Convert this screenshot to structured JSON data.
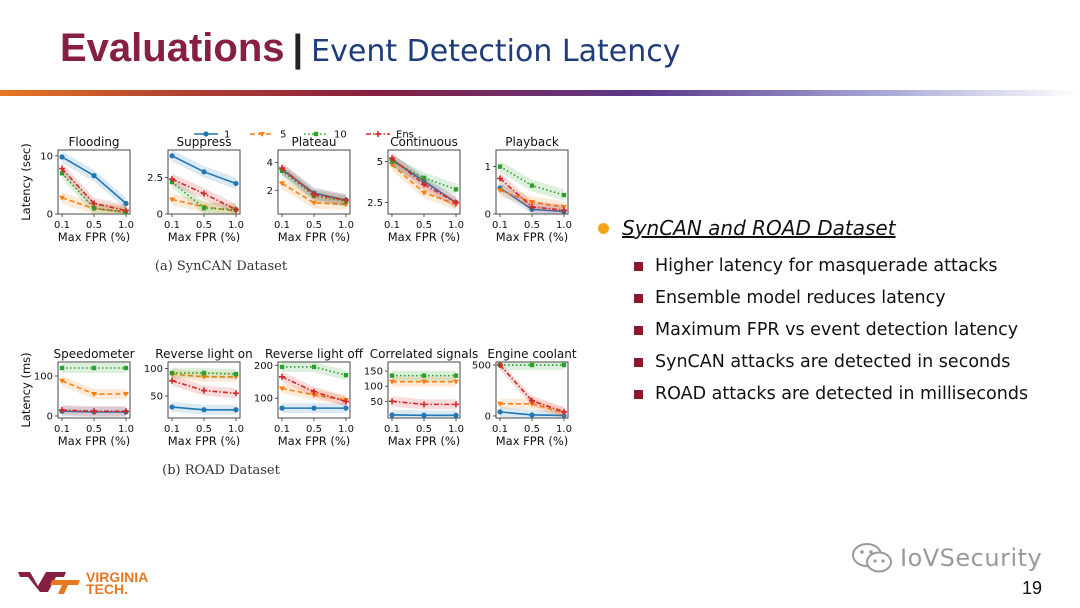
{
  "slide": {
    "title_main": "Evaluations",
    "title_sep": "|",
    "title_sub": "Event Detection Latency",
    "page_number": "19",
    "watermark": "IoVSecurity",
    "logo_line1": "VIRGINIA",
    "logo_line2": "TECH."
  },
  "bullets": {
    "heading": "SynCAN and ROAD Dataset",
    "items": [
      "Higher latency for masquerade attacks",
      "Ensemble model reduces latency",
      "Maximum FPR vs event detection latency",
      "SynCAN attacks are detected in seconds",
      "ROAD attacks  are detected in milliseconds"
    ]
  },
  "colors": {
    "title_main": "#861f41",
    "title_sub": "#1f3c7a",
    "bullet_dot": "#f5a41a",
    "bullet_square": "#8b1a2c",
    "series_1": "#1f77b4",
    "series_5": "#ff7f0e",
    "series_10": "#2ca02c",
    "series_ens": "#d62728"
  },
  "chart_data": [
    {
      "type": "line",
      "caption": "(a) SynCAN Dataset",
      "ylabel": "Latency (sec)",
      "xlabel": "Max FPR (%)",
      "x": [
        "0.1",
        "0.5",
        "1.0"
      ],
      "legend": [
        "1",
        "5",
        "10",
        "Ens"
      ],
      "panels": [
        {
          "title": "Flooding",
          "ylim": [
            0,
            11
          ],
          "yticks": [
            0,
            10
          ],
          "series": [
            {
              "name": "1",
              "values": [
                9.8,
                6.6,
                1.8
              ]
            },
            {
              "name": "5",
              "values": [
                2.8,
                0.9,
                0.4
              ]
            },
            {
              "name": "10",
              "values": [
                7.0,
                1.0,
                0.3
              ]
            },
            {
              "name": "Ens",
              "values": [
                7.8,
                1.8,
                0.6
              ]
            }
          ]
        },
        {
          "title": "Suppress",
          "ylim": [
            0,
            4.4
          ],
          "yticks": [
            0.0,
            2.5
          ],
          "series": [
            {
              "name": "1",
              "values": [
                4.0,
                2.9,
                2.1
              ]
            },
            {
              "name": "5",
              "values": [
                1.0,
                0.5,
                0.2
              ]
            },
            {
              "name": "10",
              "values": [
                2.2,
                0.4,
                0.3
              ]
            },
            {
              "name": "Ens",
              "values": [
                2.4,
                1.4,
                0.3
              ]
            }
          ]
        },
        {
          "title": "Plateau",
          "ylim": [
            0.3,
            4.9
          ],
          "yticks": [
            2,
            4
          ],
          "series": [
            {
              "name": "1",
              "values": [
                3.5,
                1.8,
                1.3
              ]
            },
            {
              "name": "5",
              "values": [
                2.5,
                1.1,
                1.0
              ]
            },
            {
              "name": "10",
              "values": [
                3.4,
                1.6,
                1.2
              ]
            },
            {
              "name": "Ens",
              "values": [
                3.6,
                1.7,
                1.3
              ]
            }
          ]
        },
        {
          "title": "Continuous",
          "ylim": [
            1.8,
            5.7
          ],
          "yticks": [
            2.5,
            5.0
          ],
          "series": [
            {
              "name": "1",
              "values": [
                5.1,
                3.8,
                2.5
              ]
            },
            {
              "name": "5",
              "values": [
                4.8,
                3.1,
                2.4
              ]
            },
            {
              "name": "10",
              "values": [
                5.0,
                4.0,
                3.3
              ]
            },
            {
              "name": "Ens",
              "values": [
                5.2,
                3.6,
                2.5
              ]
            }
          ]
        },
        {
          "title": "Playback",
          "ylim": [
            0,
            1.35
          ],
          "yticks": [
            0,
            1
          ],
          "series": [
            {
              "name": "1",
              "values": [
                0.55,
                0.1,
                0.05
              ]
            },
            {
              "name": "5",
              "values": [
                0.5,
                0.25,
                0.15
              ]
            },
            {
              "name": "10",
              "values": [
                1.0,
                0.6,
                0.4
              ]
            },
            {
              "name": "Ens",
              "values": [
                0.75,
                0.15,
                0.08
              ]
            }
          ]
        }
      ]
    },
    {
      "type": "line",
      "caption": "(b) ROAD Dataset",
      "ylabel": "Latency (ms)",
      "xlabel": "Max FPR (%)",
      "x": [
        "0.1",
        "0.5",
        "1.0"
      ],
      "panels": [
        {
          "title": "Speedometer",
          "ylim": [
            -5,
            135
          ],
          "yticks": [
            0,
            100
          ],
          "series": [
            {
              "name": "1",
              "values": [
                12,
                10,
                10
              ]
            },
            {
              "name": "5",
              "values": [
                88,
                55,
                55
              ]
            },
            {
              "name": "10",
              "values": [
                120,
                120,
                120
              ]
            },
            {
              "name": "Ens",
              "values": [
                15,
                12,
                12
              ]
            }
          ]
        },
        {
          "title": "Reverse light on",
          "ylim": [
            10,
            112
          ],
          "yticks": [
            50,
            100
          ],
          "series": [
            {
              "name": "1",
              "values": [
                30,
                25,
                25
              ]
            },
            {
              "name": "5",
              "values": [
                90,
                85,
                85
              ]
            },
            {
              "name": "10",
              "values": [
                92,
                92,
                90
              ]
            },
            {
              "name": "Ens",
              "values": [
                78,
                60,
                55
              ]
            }
          ]
        },
        {
          "title": "Reverse light off",
          "ylim": [
            40,
            210
          ],
          "yticks": [
            100,
            200
          ],
          "series": [
            {
              "name": "1",
              "values": [
                70,
                70,
                70
              ]
            },
            {
              "name": "5",
              "values": [
                130,
                110,
                95
              ]
            },
            {
              "name": "10",
              "values": [
                195,
                195,
                170
              ]
            },
            {
              "name": "Ens",
              "values": [
                165,
                120,
                90
              ]
            }
          ]
        },
        {
          "title": "Correlated signals",
          "ylim": [
            -5,
            180
          ],
          "yticks": [
            50,
            100,
            150
          ],
          "series": [
            {
              "name": "1",
              "values": [
                5,
                4,
                4
              ]
            },
            {
              "name": "5",
              "values": [
                115,
                115,
                115
              ]
            },
            {
              "name": "10",
              "values": [
                135,
                135,
                135
              ]
            },
            {
              "name": "Ens",
              "values": [
                50,
                40,
                40
              ]
            }
          ]
        },
        {
          "title": "Engine coolant",
          "ylim": [
            -20,
            530
          ],
          "yticks": [
            0,
            500
          ],
          "series": [
            {
              "name": "1",
              "values": [
                40,
                10,
                5
              ]
            },
            {
              "name": "5",
              "values": [
                120,
                120,
                30
              ]
            },
            {
              "name": "10",
              "values": [
                500,
                500,
                500
              ]
            },
            {
              "name": "Ens",
              "values": [
                500,
                150,
                40
              ]
            }
          ]
        }
      ]
    }
  ]
}
